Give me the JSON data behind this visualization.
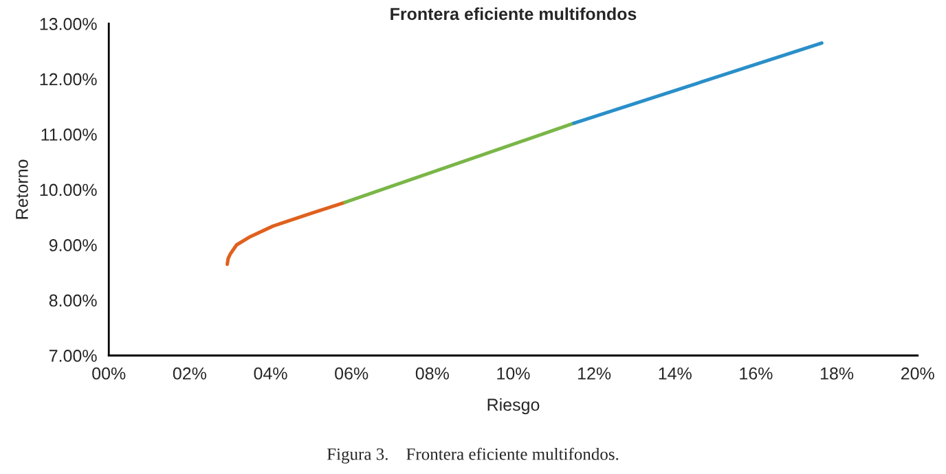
{
  "chart_data": {
    "type": "line",
    "title": "Frontera eficiente multifondos",
    "xlabel": "Riesgo",
    "ylabel": "Retorno",
    "annotations": [
      "Figura 3.    Frontera eficiente multifondos."
    ],
    "series": [
      {
        "color": "#e0601e",
        "x": [
          2.93,
          2.95,
          3.0,
          3.16,
          3.5,
          4.06,
          5.0,
          5.84
        ],
        "values": [
          8.65,
          8.75,
          8.83,
          9.0,
          9.15,
          9.34,
          9.57,
          9.77
        ]
      },
      {
        "color": "#7ab648",
        "x": [
          5.84,
          11.5
        ],
        "values": [
          9.77,
          11.2
        ]
      },
      {
        "color": "#2a8fc9",
        "x": [
          11.5,
          17.63
        ],
        "values": [
          11.2,
          12.65
        ]
      }
    ],
    "xlim": [
      0,
      20
    ],
    "ylim": [
      7,
      13
    ],
    "xticks": [
      {
        "value": 0,
        "label": "00%"
      },
      {
        "value": 2,
        "label": "02%"
      },
      {
        "value": 4,
        "label": "04%"
      },
      {
        "value": 6,
        "label": "06%"
      },
      {
        "value": 8,
        "label": "08%"
      },
      {
        "value": 10,
        "label": "10%"
      },
      {
        "value": 12,
        "label": "12%"
      },
      {
        "value": 14,
        "label": "14%"
      },
      {
        "value": 16,
        "label": "16%"
      },
      {
        "value": 18,
        "label": "18%"
      },
      {
        "value": 20,
        "label": "20%"
      }
    ],
    "yticks": [
      {
        "value": 7,
        "label": "7.00%"
      },
      {
        "value": 8,
        "label": "8.00%"
      },
      {
        "value": 9,
        "label": "9.00%"
      },
      {
        "value": 10,
        "label": "10.00%"
      },
      {
        "value": 11,
        "label": "11.00%"
      },
      {
        "value": 12,
        "label": "12.00%"
      },
      {
        "value": 13,
        "label": "13.00%"
      }
    ],
    "grid": false
  }
}
